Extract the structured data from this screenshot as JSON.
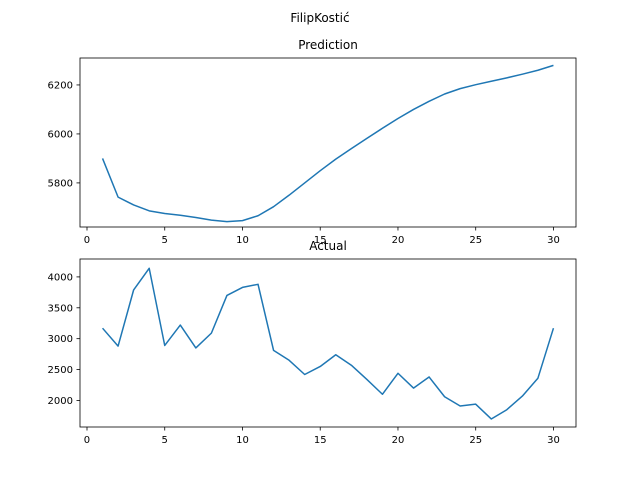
{
  "figure": {
    "suptitle": "FilipKostić"
  },
  "chart_data": [
    {
      "type": "line",
      "title": "Prediction",
      "xlabel": "",
      "ylabel": "",
      "xlim": [
        -0.45,
        31.45
      ],
      "ylim": [
        5620,
        6310
      ],
      "xticks": [
        0,
        5,
        10,
        15,
        20,
        25,
        30
      ],
      "yticks": [
        5800,
        6000,
        6200
      ],
      "grid": false,
      "color": "#1f77b4",
      "x": [
        1,
        2,
        3,
        4,
        5,
        6,
        7,
        8,
        9,
        10,
        11,
        12,
        13,
        14,
        15,
        16,
        17,
        18,
        19,
        20,
        21,
        22,
        23,
        24,
        25,
        26,
        27,
        28,
        29,
        30
      ],
      "y": [
        5900,
        5742,
        5710,
        5686,
        5675,
        5668,
        5659,
        5648,
        5642,
        5646,
        5666,
        5703,
        5750,
        5800,
        5850,
        5897,
        5940,
        5982,
        6023,
        6063,
        6100,
        6133,
        6163,
        6185,
        6201,
        6215,
        6229,
        6244,
        6260,
        6280
      ]
    },
    {
      "type": "line",
      "title": "Actual",
      "xlabel": "",
      "ylabel": "",
      "xlim": [
        -0.45,
        31.45
      ],
      "ylim": [
        1570,
        4290
      ],
      "xticks": [
        0,
        5,
        10,
        15,
        20,
        25,
        30
      ],
      "yticks": [
        2000,
        2500,
        3000,
        3500,
        4000
      ],
      "grid": false,
      "color": "#1f77b4",
      "x": [
        1,
        2,
        3,
        4,
        5,
        6,
        7,
        8,
        9,
        10,
        11,
        12,
        13,
        14,
        15,
        16,
        17,
        18,
        19,
        20,
        21,
        22,
        23,
        24,
        25,
        26,
        27,
        28,
        29,
        30
      ],
      "y": [
        3170,
        2880,
        3790,
        4140,
        2890,
        3220,
        2850,
        3090,
        3700,
        3830,
        3880,
        2810,
        2650,
        2420,
        2550,
        2740,
        2570,
        2340,
        2100,
        2440,
        2200,
        2380,
        2060,
        1910,
        1940,
        1700,
        1850,
        2070,
        2360,
        3170
      ]
    }
  ]
}
